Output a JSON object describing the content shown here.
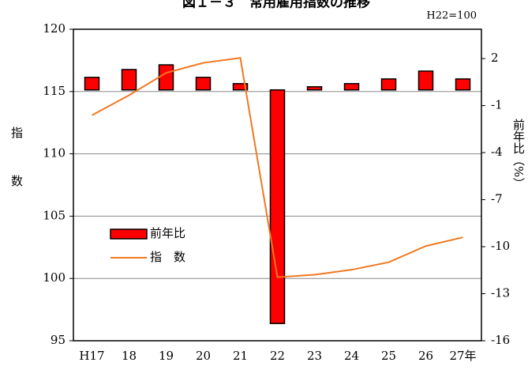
{
  "chart_data": {
    "type": "bar-line",
    "title": "図１－３　常用雇用指数の推移",
    "note": "H22=100",
    "categories": [
      "H17",
      "18",
      "19",
      "20",
      "21",
      "22",
      "23",
      "24",
      "25",
      "26",
      "27年"
    ],
    "series": [
      {
        "name": "前年比",
        "type": "bar",
        "axis": "y2",
        "color": "#ff0000",
        "values": [
          0.8,
          1.3,
          1.6,
          0.8,
          0.4,
          -14.9,
          0.2,
          0.4,
          0.7,
          1.2,
          0.7
        ]
      },
      {
        "name": "指　数",
        "type": "line",
        "color": "#f07820",
        "values": [
          113.1,
          114.7,
          116.5,
          117.3,
          117.7,
          100.1,
          100.3,
          100.7,
          101.3,
          102.6,
          103.3
        ]
      }
    ],
    "ylabel": "指数",
    "y2label": "前年比（%）",
    "ylim": [
      95,
      120
    ],
    "yticks": [
      95,
      100,
      105,
      110,
      115,
      120
    ],
    "y2lim": [
      -16,
      3.87
    ],
    "y2ticks": [
      -16,
      -13,
      -10,
      -7,
      -4,
      -1,
      2
    ],
    "grid": true
  }
}
